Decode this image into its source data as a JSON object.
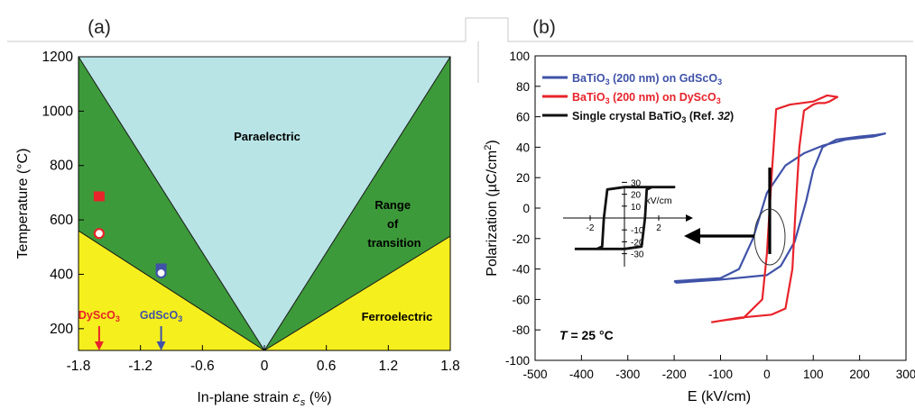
{
  "panels": {
    "a_label": "(a)",
    "b_label": "(b)"
  },
  "chart_data": [
    {
      "type": "area",
      "xlabel_text": "In-plane strain ",
      "xlabel_symbol": "ε",
      "xlabel_sub": "s",
      "xlabel_unit": " (%)",
      "ylabel": "Temperature (°C)",
      "xlim": [
        -1.8,
        1.8
      ],
      "ylim": [
        120,
        1200
      ],
      "xticks": [
        -1.8,
        -1.2,
        -0.6,
        0,
        0.6,
        1.2,
        1.8
      ],
      "xtick_labels": [
        "-1.8",
        "-1.2",
        "-0.6",
        "0",
        "0.6",
        "1.2",
        "1.8"
      ],
      "yticks": [
        200,
        400,
        600,
        800,
        1000,
        1200
      ],
      "ytick_labels": [
        "200",
        "400",
        "600",
        "800",
        "1000",
        "1200"
      ],
      "region_labels": {
        "paraelectric": "Paraelectric",
        "transition": [
          "Range",
          "of",
          "transition"
        ],
        "ferroelectric": "Ferroelectric"
      },
      "colors": {
        "paraelectric": "#b8e4e6",
        "transition": "#3d9a3a",
        "ferroelectric": "#f6ef1e"
      },
      "boundaries": {
        "vertex": [
          0,
          120
        ],
        "upper_left": [
          -1.8,
          1200
        ],
        "upper_right": [
          1.8,
          1200
        ],
        "lower_left": [
          -1.8,
          560
        ],
        "lower_right": [
          1.8,
          540
        ]
      },
      "points": [
        {
          "name": "DyScO3 filled",
          "x": -1.6,
          "y": 685,
          "marker": "square",
          "color": "#e8232a",
          "fill": "filled"
        },
        {
          "name": "DyScO3 open",
          "x": -1.6,
          "y": 550,
          "marker": "circle",
          "color": "#e8232a",
          "fill": "open"
        },
        {
          "name": "GdScO3 filled",
          "x": -1.0,
          "y": 420,
          "marker": "square",
          "color": "#3f52a8",
          "fill": "filled"
        },
        {
          "name": "GdScO3 open",
          "x": -1.0,
          "y": 405,
          "marker": "circle",
          "color": "#3f52a8",
          "fill": "open"
        }
      ],
      "substrates": [
        {
          "main": "DyScO",
          "sub": "3",
          "x": -1.6,
          "color": "#e8232a"
        },
        {
          "main": "GdScO",
          "sub": "3",
          "x": -1.0,
          "color": "#3f52a8"
        }
      ]
    },
    {
      "type": "line",
      "xlabel": "E (kV/cm)",
      "ylabel_main": "Polarization (µC/cm",
      "ylabel_sup": "2",
      "ylabel_end": ")",
      "xlim": [
        -500,
        300
      ],
      "ylim": [
        -100,
        100
      ],
      "xticks": [
        -500,
        -400,
        -300,
        -200,
        -100,
        0,
        100,
        200,
        300
      ],
      "xtick_labels": [
        "-500",
        "-400",
        "-300",
        "-200",
        "-100",
        "0",
        "100",
        "200",
        "300"
      ],
      "yticks": [
        -100,
        -80,
        -60,
        -40,
        -20,
        0,
        20,
        40,
        60,
        80,
        100
      ],
      "ytick_labels": [
        "-100",
        "-80",
        "-60",
        "-40",
        "-20",
        "0",
        "20",
        "40",
        "60",
        "80",
        "100"
      ],
      "legend_position": "top-left",
      "annotation": {
        "T": "T",
        "rest": " = 25 °C"
      },
      "series": [
        {
          "name": "BaTiO3 (200 nm) on GdScO3",
          "legend": [
            "BaTiO",
            "3",
            " (200 nm) on GdScO",
            "3",
            ""
          ],
          "color": "#3f52a8",
          "x": [
            -200,
            -100,
            -60,
            -30,
            0,
            40,
            80,
            120,
            170,
            230,
            255,
            235,
            200,
            150,
            120,
            100,
            85,
            60,
            30,
            0,
            -100,
            -150,
            -195,
            -200
          ],
          "y": [
            -48,
            -46,
            -40,
            -20,
            10,
            28,
            36,
            41,
            45,
            47,
            49,
            48,
            47,
            45,
            40,
            25,
            5,
            -22,
            -38,
            -44,
            -47,
            -48,
            -49,
            -48
          ]
        },
        {
          "name": "BaTiO3 (200 nm) on DySc O3",
          "legend": [
            "BaTiO",
            "3",
            " (200 nm) on DyScO",
            "3",
            ""
          ],
          "color": "#e8232a",
          "x": [
            -120,
            -100,
            -50,
            -10,
            0,
            10,
            20,
            50,
            100,
            130,
            152,
            135,
            125,
            110,
            100,
            80,
            70,
            62,
            55,
            40,
            10,
            -60,
            -100,
            -120
          ],
          "y": [
            -75,
            -74,
            -72,
            -60,
            -30,
            20,
            65,
            68,
            70,
            74,
            73,
            70,
            69,
            69,
            68,
            64,
            40,
            0,
            -40,
            -66,
            -70,
            -72,
            -74,
            -75
          ]
        }
      ],
      "reference_series": {
        "name": "Single crystal BaTiO3",
        "legend_main": "Single crystal BaTiO",
        "legend_sub": "3",
        "legend_ref": " (Ref. ",
        "legend_ref_num": "32",
        "legend_ref_end": ")",
        "color": "#111111"
      },
      "inset": {
        "xlabel": "kV/cm",
        "xticks": [
          -2,
          2
        ],
        "xtick_labels": [
          "-2",
          "2"
        ],
        "yticks": [
          30,
          20,
          10,
          -10,
          -20,
          -30
        ],
        "ytick_labels": [
          "30",
          "20",
          "10",
          "-10",
          "-20",
          "-30"
        ],
        "loop_x": [
          -2.9,
          -1.6,
          -1.3,
          -1.2,
          -1.0,
          0,
          2.5,
          2.9,
          1.6,
          1.3,
          1.2,
          1.0,
          0,
          -2.5,
          -2.9
        ],
        "loop_y": [
          -26,
          -26,
          -24,
          0,
          24,
          26,
          26,
          26,
          26,
          24,
          0,
          -24,
          -26,
          -26,
          -26
        ]
      }
    }
  ]
}
